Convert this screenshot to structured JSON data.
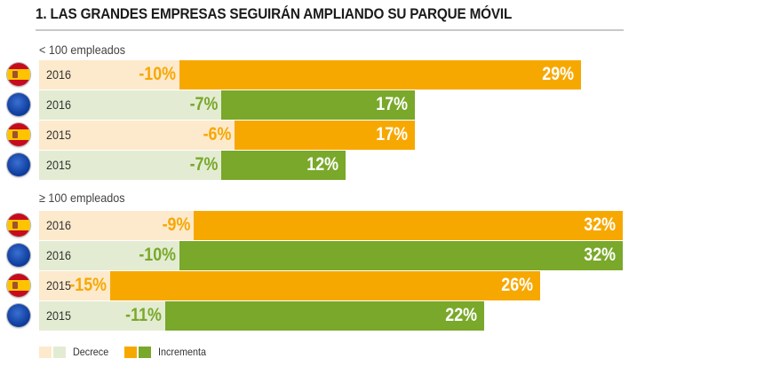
{
  "title": "1. LAS GRANDES EMPRESAS SEGUIRÁN AMPLIANDO SU PARQUE MÓVIL",
  "colors": {
    "decrece_es": "#fde9cc",
    "decrece_eu": "#e3ecd2",
    "incrementa_es": "#f7a800",
    "incrementa_eu": "#79a82a"
  },
  "legend": {
    "decrece": "Decrece",
    "incrementa": "Incrementa"
  },
  "chart_data": {
    "type": "bar",
    "title": "1. LAS GRANDES EMPRESAS SEGUIRÁN AMPLIANDO SU PARQUE MÓVIL",
    "series": [
      {
        "name": "Decrece",
        "sign": "negative"
      },
      {
        "name": "Incrementa",
        "sign": "positive"
      }
    ],
    "groups": [
      {
        "label": "< 100 empleados",
        "rows": [
          {
            "flag": "es",
            "flag_icon": "spain-flag-icon",
            "year": "2016",
            "decrece": -10,
            "incrementa": 29,
            "decrece_label": "-10%",
            "incrementa_label": "29%"
          },
          {
            "flag": "eu",
            "flag_icon": "eu-flag-icon",
            "year": "2016",
            "decrece": -7,
            "incrementa": 17,
            "decrece_label": "-7%",
            "incrementa_label": "17%"
          },
          {
            "flag": "es",
            "flag_icon": "spain-flag-icon",
            "year": "2015",
            "decrece": -6,
            "incrementa": 17,
            "decrece_label": "-6%",
            "incrementa_label": "17%"
          },
          {
            "flag": "eu",
            "flag_icon": "eu-flag-icon",
            "year": "2015",
            "decrece": -7,
            "incrementa": 12,
            "decrece_label": "-7%",
            "incrementa_label": "12%"
          }
        ]
      },
      {
        "label": "≥ 100 empleados",
        "rows": [
          {
            "flag": "es",
            "flag_icon": "spain-flag-icon",
            "year": "2016",
            "decrece": -9,
            "incrementa": 32,
            "decrece_label": "-9%",
            "incrementa_label": "32%"
          },
          {
            "flag": "eu",
            "flag_icon": "eu-flag-icon",
            "year": "2016",
            "decrece": -10,
            "incrementa": 32,
            "decrece_label": "-10%",
            "incrementa_label": "32%"
          },
          {
            "flag": "es",
            "flag_icon": "spain-flag-icon",
            "year": "2015",
            "decrece": -15,
            "incrementa": 26,
            "decrece_label": "-15%",
            "incrementa_label": "26%"
          },
          {
            "flag": "eu",
            "flag_icon": "eu-flag-icon",
            "year": "2015",
            "decrece": -11,
            "incrementa": 22,
            "decrece_label": "-11%",
            "incrementa_label": "22%"
          }
        ]
      }
    ]
  }
}
